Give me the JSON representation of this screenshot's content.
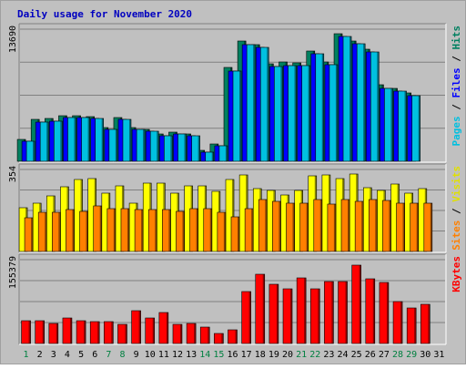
{
  "chart_data": {
    "type": "bar",
    "title": "Daily usage for November 2020",
    "x": [
      "1",
      "2",
      "3",
      "4",
      "5",
      "6",
      "7",
      "8",
      "9",
      "10",
      "11",
      "12",
      "13",
      "14",
      "15",
      "16",
      "17",
      "18",
      "19",
      "20",
      "21",
      "22",
      "23",
      "24",
      "25",
      "26",
      "27",
      "28",
      "29",
      "30",
      "31"
    ],
    "weekend_days": [
      "1",
      "7",
      "8",
      "14",
      "15",
      "21",
      "22",
      "28",
      "29"
    ],
    "panels": [
      {
        "id": "hits-files-pages",
        "axis_max_label": "13690",
        "ylim": [
          0,
          13690
        ],
        "right_label": [
          {
            "text": "Pages",
            "color": "#00c0e0"
          },
          {
            "text": " / ",
            "color": "#000000"
          },
          {
            "text": "Files",
            "color": "#0000ff"
          },
          {
            "text": " / ",
            "color": "#000000"
          },
          {
            "text": "Hits",
            "color": "#008060"
          }
        ],
        "series": [
          {
            "name": "Hits",
            "color": "#008060",
            "values": [
              2280,
              4300,
              4400,
              4700,
              4700,
              4640,
              3530,
              4560,
              3480,
              3290,
              2790,
              3000,
              2870,
              1140,
              1830,
              9740,
              12500,
              12100,
              10100,
              10250,
              10220,
              11400,
              10300,
              13200,
              12500,
              11620,
              7900,
              7560,
              7060,
              0,
              0
            ]
          },
          {
            "name": "Files",
            "color": "#0000ff",
            "values": [
              2080,
              4080,
              4200,
              4500,
              4500,
              4440,
              3330,
              4360,
              3290,
              3090,
              2600,
              2800,
              2670,
              960,
              1640,
              9300,
              12100,
              11800,
              9800,
              9950,
              9920,
              11100,
              10000,
              12900,
              12200,
              11320,
              7600,
              7260,
              6760,
              0,
              0
            ]
          },
          {
            "name": "Pages",
            "color": "#00c0e0",
            "values": [
              2080,
              4080,
              4200,
              4500,
              4500,
              4440,
              3330,
              4360,
              3290,
              3090,
              2600,
              2800,
              2670,
              960,
              1640,
              9300,
              12100,
              11800,
              9800,
              9950,
              9920,
              11100,
              10000,
              12900,
              12200,
              11320,
              7600,
              7260,
              6760,
              0,
              0
            ]
          }
        ]
      },
      {
        "id": "visits-sites",
        "axis_max_label": "354",
        "ylim": [
          0,
          354
        ],
        "right_label": [
          {
            "text": "Sites",
            "color": "#ff8000"
          },
          {
            "text": " / ",
            "color": "#000000"
          },
          {
            "text": "Visits",
            "color": "#e0e000"
          }
        ],
        "series": [
          {
            "name": "Visits",
            "color": "#ffff00",
            "values": [
              190,
              210,
              240,
              280,
              310,
              315,
              250,
              285,
              210,
              295,
              295,
              250,
              285,
              285,
              260,
              310,
              330,
              270,
              265,
              245,
              265,
              325,
              330,
              315,
              336,
              275,
              265,
              290,
              250,
              270,
              0
            ]
          },
          {
            "name": "Sites",
            "color": "#ff8000",
            "values": [
              145,
              170,
              170,
              180,
              175,
              195,
              185,
              185,
              180,
              180,
              180,
              175,
              185,
              185,
              170,
              150,
              185,
              225,
              215,
              210,
              210,
              225,
              205,
              225,
              215,
              225,
              220,
              210,
              210,
              210,
              0
            ]
          }
        ]
      },
      {
        "id": "kbytes",
        "axis_max_label": "155379",
        "ylim": [
          0,
          155379
        ],
        "right_label": [
          {
            "text": "KBytes",
            "color": "#ff0000"
          }
        ],
        "series": [
          {
            "name": "KBytes",
            "color": "#ff0000",
            "values": [
              42000,
              43000,
              37000,
              48000,
              42000,
              41000,
              41000,
              36000,
              61000,
              48000,
              57000,
              35000,
              37000,
              30000,
              18000,
              25000,
              97000,
              128000,
              110000,
              101000,
              122000,
              102000,
              115000,
              115000,
              145000,
              120000,
              114000,
              78000,
              66000,
              73000,
              0
            ]
          }
        ]
      }
    ]
  }
}
